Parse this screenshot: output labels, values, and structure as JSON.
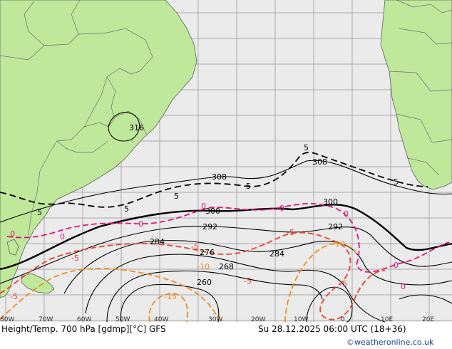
{
  "footer": {
    "title": "Height/Temp. 700 hPa [gdmp][°C] GFS",
    "date": "Su 28.12.2025 06:00 UTC (18+36)",
    "credit": "©weatheronline.co.uk"
  },
  "colors": {
    "ocean": "#ebebeb",
    "land": "#bfe89b",
    "height_contour": "#000000",
    "temp_zero": "#e0167a",
    "temp_neg5": "#e8432f",
    "temp_neg10": "#f08c1e",
    "temp_pos5": "#000000"
  },
  "lon_labels": [
    "80W",
    "70W",
    "60W",
    "50W",
    "40W",
    "30W",
    "20W",
    "10W",
    "0",
    "10E",
    "20E"
  ],
  "height_labels": [
    "316",
    "308",
    "308",
    "300",
    "300",
    "292",
    "292",
    "284",
    "284",
    "276",
    "268",
    "260"
  ],
  "temp_labels": {
    "pos5": [
      "5",
      "5",
      "5",
      "5",
      "5",
      "5"
    ],
    "zero": [
      "0",
      "0",
      "0",
      "0",
      "0",
      "0",
      "0",
      "0"
    ],
    "neg5": [
      "-5",
      "-5",
      "-5",
      "-5",
      "-5",
      "-5"
    ],
    "neg10": [
      "-10",
      "-10",
      "-15"
    ]
  }
}
